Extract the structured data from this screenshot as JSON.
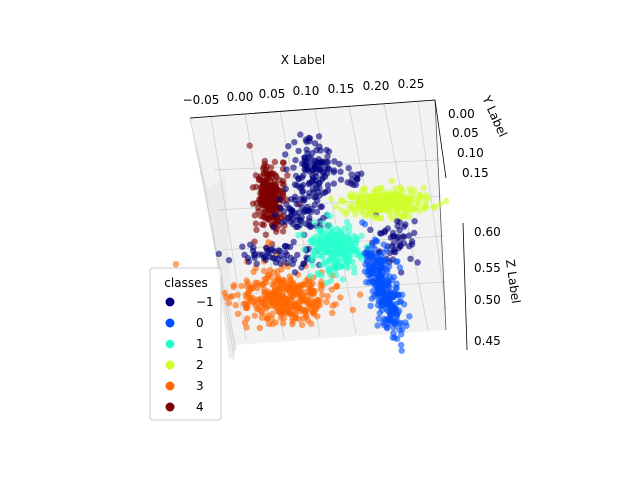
{
  "chart_data": {
    "type": "scatter",
    "projection": "3d",
    "grid": true,
    "xlabel": "X Label",
    "ylabel": "Y Label",
    "zlabel": "Z Label",
    "x_ticks": [
      "−0.05",
      "0.00",
      "0.05",
      "0.10",
      "0.15",
      "0.20",
      "0.25"
    ],
    "y_ticks": [
      "0.00",
      "0.05",
      "0.10",
      "0.15"
    ],
    "z_ticks": [
      "0.45",
      "0.50",
      "0.55",
      "0.60"
    ],
    "xlim": [
      -0.07,
      0.29
    ],
    "ylim": [
      0.0,
      0.17
    ],
    "zlim": [
      0.44,
      0.63
    ],
    "legend": {
      "title": "classes",
      "placement": "lower-left",
      "entries": [
        {
          "label": "−1",
          "color": "#00007f"
        },
        {
          "label": "0",
          "color": "#0050ff"
        },
        {
          "label": "1",
          "color": "#29ffce"
        },
        {
          "label": "2",
          "color": "#ceff29"
        },
        {
          "label": "3",
          "color": "#ff6800"
        },
        {
          "label": "4",
          "color": "#7f0000"
        }
      ]
    },
    "series": [
      {
        "name": "−1",
        "color": "#00007f",
        "cluster_center": [
          0.13,
          0.06,
          0.6
        ],
        "spread": "scattered",
        "n_points_est": 300
      },
      {
        "name": "0",
        "color": "#0050ff",
        "cluster_center": [
          0.21,
          0.11,
          0.5
        ],
        "spread": "elongated",
        "n_points_est": 400
      },
      {
        "name": "1",
        "color": "#29ffce",
        "cluster_center": [
          0.14,
          0.08,
          0.57
        ],
        "spread": "compact",
        "n_points_est": 400
      },
      {
        "name": "2",
        "color": "#ceff29",
        "cluster_center": [
          0.22,
          0.02,
          0.61
        ],
        "spread": "flat",
        "n_points_est": 400
      },
      {
        "name": "3",
        "color": "#ff6800",
        "cluster_center": [
          0.04,
          0.13,
          0.5
        ],
        "spread": "wide",
        "n_points_est": 500
      },
      {
        "name": "4",
        "color": "#7f0000",
        "cluster_center": [
          0.02,
          0.06,
          0.62
        ],
        "spread": "compact",
        "n_points_est": 400
      }
    ]
  }
}
